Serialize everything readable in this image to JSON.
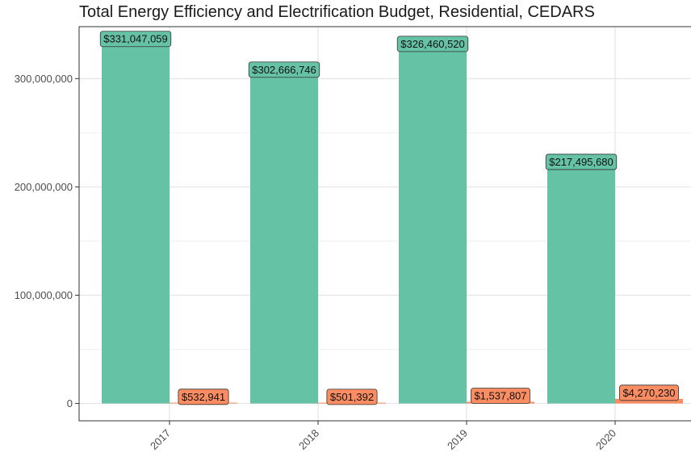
{
  "chart_data": {
    "type": "bar",
    "title": "Total Energy Efficiency and Electrification Budget, Residential, CEDARS",
    "xlabel": "",
    "ylabel": "",
    "categories": [
      "2017",
      "2018",
      "2019",
      "2020"
    ],
    "series": [
      {
        "values": [
          331047059,
          302666746,
          326460520,
          217495680
        ],
        "labels": [
          "$331,047,059",
          "$302,666,746",
          "$326,460,520",
          "$217,495,680"
        ],
        "color": "#66c2a5"
      },
      {
        "values": [
          532941,
          501392,
          1537807,
          4270230
        ],
        "labels": [
          "$532,941",
          "$501,392",
          "$1,537,807",
          "$4,270,230"
        ],
        "color": "#fc8d62"
      }
    ],
    "y_ticks": [
      0,
      100000000,
      200000000,
      300000000
    ],
    "y_tick_labels": [
      "0",
      "100,000,000",
      "200,000,000",
      "300,000,000"
    ],
    "ylim": [
      -16000000,
      348000000
    ],
    "grid": true,
    "legend": "none"
  }
}
